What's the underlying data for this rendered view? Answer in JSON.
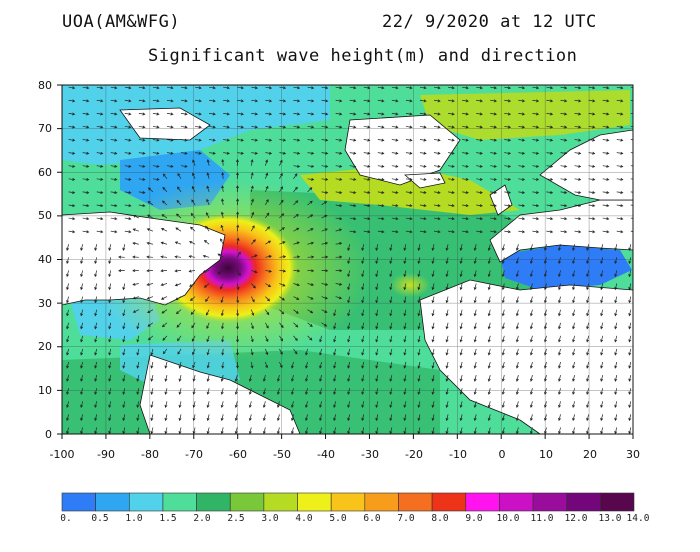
{
  "header": {
    "source": "UOA(AM&WFG)",
    "datetime": "22/ 9/2020 at 12 UTC",
    "title": "Significant wave height(m) and direction"
  },
  "map": {
    "lon_range": [
      -100,
      30
    ],
    "lat_range": [
      0,
      80
    ],
    "lon_ticks": [
      "-100",
      "-90",
      "-80",
      "-70",
      "-60",
      "-50",
      "-40",
      "-30",
      "-20",
      "-10",
      "0",
      "10",
      "20",
      "30"
    ],
    "lat_ticks": [
      "0",
      "10",
      "20",
      "30",
      "40",
      "50",
      "60",
      "70",
      "80"
    ],
    "storm_center": {
      "lon": -61,
      "lat": 39,
      "peak_wave_height_m": 14
    }
  },
  "colorbar": {
    "labels": [
      "0.",
      "0.5",
      "1.0",
      "1.5",
      "2.0",
      "2.5",
      "3.0",
      "4.0",
      "5.0",
      "6.0",
      "7.0",
      "8.0",
      "9.0",
      "10.0",
      "11.0",
      "12.0",
      "13.0",
      "14.0"
    ],
    "colors": [
      "#2f7df6",
      "#2ea6f2",
      "#52d2ea",
      "#4fdd9a",
      "#2fb565",
      "#78c83a",
      "#b5dc22",
      "#eef019",
      "#f8c419",
      "#f89d1b",
      "#f46f1f",
      "#ed3418",
      "#ff14f0",
      "#cc10c6",
      "#9a0c9c",
      "#74067c",
      "#58064e"
    ]
  }
}
